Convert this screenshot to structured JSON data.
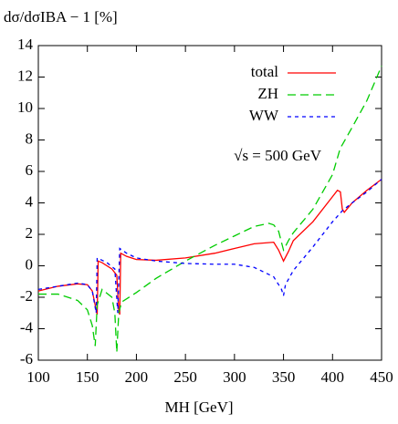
{
  "chart_data": {
    "type": "line",
    "y_label": "dσ/dσIBA − 1 [%]",
    "x_label": "MH [GeV]",
    "annotation": "√s = 500 GeV",
    "xlim": [
      100,
      450
    ],
    "xticks": [
      100,
      150,
      200,
      250,
      300,
      350,
      400,
      450
    ],
    "ylim": [
      -6,
      14
    ],
    "yticks": [
      -6,
      -4,
      -2,
      0,
      2,
      4,
      6,
      8,
      10,
      12,
      14
    ],
    "legend": "upper right",
    "series": [
      {
        "name": "total",
        "color": "#ff0000",
        "x": [
          100,
          120,
          140,
          150,
          155,
          158,
          160,
          161,
          165,
          175,
          180,
          182,
          183,
          184,
          190,
          200,
          220,
          250,
          280,
          300,
          320,
          340,
          345,
          350,
          355,
          360,
          380,
          400,
          405,
          408,
          410,
          412,
          420,
          435,
          450
        ],
        "values": [
          -1.6,
          -1.3,
          -1.15,
          -1.2,
          -1.6,
          -2.5,
          -3.1,
          0.3,
          0.2,
          -0.2,
          -0.6,
          -2.8,
          -3.1,
          0.8,
          0.6,
          0.4,
          0.35,
          0.5,
          0.8,
          1.1,
          1.4,
          1.5,
          1.0,
          0.3,
          0.9,
          1.6,
          2.8,
          4.4,
          4.8,
          4.7,
          3.6,
          3.4,
          4.0,
          4.8,
          5.5
        ]
      },
      {
        "name": "ZH",
        "color": "#00cc00",
        "x": [
          100,
          120,
          140,
          150,
          155,
          158,
          160,
          165,
          175,
          178,
          180,
          182,
          185,
          200,
          220,
          250,
          280,
          300,
          320,
          335,
          340,
          345,
          350,
          355,
          360,
          380,
          400,
          408,
          410,
          420,
          435,
          450
        ],
        "values": [
          -1.8,
          -1.8,
          -2.2,
          -2.8,
          -3.8,
          -5.1,
          -2.5,
          -1.5,
          -2.0,
          -3.0,
          -5.5,
          -3.0,
          -2.3,
          -1.7,
          -0.8,
          0.3,
          1.3,
          1.9,
          2.5,
          2.7,
          2.6,
          2.2,
          1.0,
          1.6,
          2.1,
          3.6,
          5.8,
          7.5,
          7.7,
          8.8,
          10.5,
          12.7
        ]
      },
      {
        "name": "WW",
        "color": "#0000ff",
        "x": [
          100,
          120,
          140,
          150,
          155,
          159,
          160,
          170,
          178,
          181,
          183,
          190,
          200,
          220,
          250,
          280,
          300,
          320,
          340,
          348,
          350,
          352,
          360,
          380,
          400,
          410,
          420,
          435,
          450
        ],
        "values": [
          -1.5,
          -1.3,
          -1.1,
          -1.2,
          -1.6,
          -3.0,
          0.5,
          0.2,
          -0.2,
          -3.0,
          1.1,
          0.8,
          0.5,
          0.3,
          0.15,
          0.1,
          0.1,
          -0.1,
          -0.7,
          -1.5,
          -1.9,
          -1.2,
          -0.3,
          1.2,
          2.8,
          3.5,
          4.0,
          4.7,
          5.5
        ]
      }
    ]
  }
}
